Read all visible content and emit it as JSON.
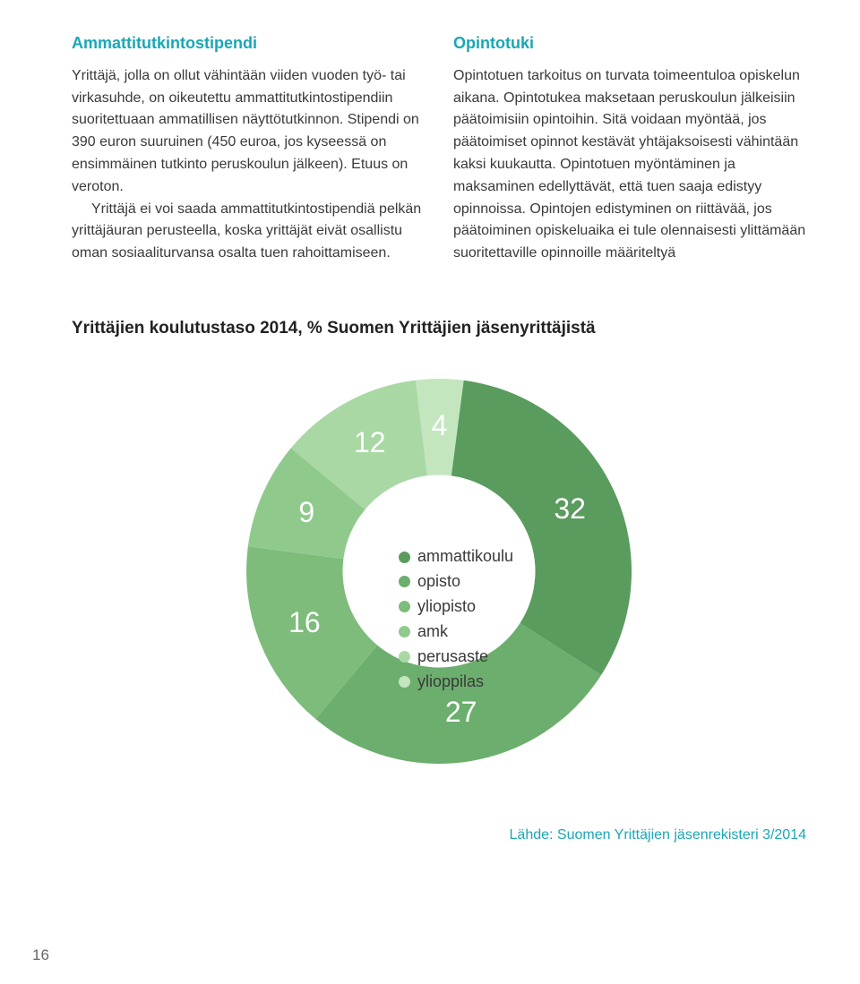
{
  "colors": {
    "accent": "#19a7b5",
    "body": "#555555",
    "chart_title": "#222222"
  },
  "left": {
    "heading": "Ammattitutkintostipendi",
    "p1": "Yrittäjä, jolla on ollut vähintään viiden vuoden työ- tai virkasuhde, on oikeutettu ammattitutkintostipendiin suoritettuaan ammatillisen näyttötutkinnon. Stipendi on 390 euron suuruinen (450 euroa, jos kyseessä on ensimmäinen tutkinto peruskoulun jälkeen). Etuus on veroton.",
    "p2": "Yrittäjä ei voi saada ammattitutkintostipendiä pelkän yrittäjäuran perusteella, koska yrittäjät eivät osallistu oman sosiaaliturvansa osalta tuen rahoittamiseen."
  },
  "right": {
    "heading": "Opintotuki",
    "p1": "Opintotuen tarkoitus on turvata toimeentuloa opiskelun aikana. Opintotukea maksetaan peruskoulun jälkeisiin päätoimisiin opintoihin. Sitä voidaan myöntää, jos päätoimiset opinnot kestävät yhtäjaksoisesti vähintään kaksi kuukautta. Opintotuen myöntäminen ja maksaminen edellyttävät, että tuen saaja edistyy opinnoissa. Opintojen edistyminen on riittävää, jos päätoiminen opiskeluaika ei tule olennaisesti ylittämään suoritettaville opinnoille määriteltyä"
  },
  "chart": {
    "title": "Yrittäjien koulutustaso 2014, % Suomen Yrittäjien jäsenyrittäjistä",
    "type": "donut",
    "background_color": "#ffffff",
    "inner_radius_ratio": 0.5,
    "segments": [
      {
        "label": "ammattikoulu",
        "value": 32,
        "color": "#5a9b5e"
      },
      {
        "label": "opisto",
        "value": 27,
        "color": "#6cae6d"
      },
      {
        "label": "yliopisto",
        "value": 16,
        "color": "#7dbc7b"
      },
      {
        "label": "amk",
        "value": 9,
        "color": "#8fca8c"
      },
      {
        "label": "perusaste",
        "value": 12,
        "color": "#a9d8a4"
      },
      {
        "label": "ylioppilas",
        "value": 4,
        "color": "#c4e6bf"
      }
    ],
    "label_fontsize": 32,
    "label_color": "#ffffff",
    "legend_fontsize": 18,
    "source": "Lähde: Suomen Yrittäjien jäsenrekisteri 3/2014"
  },
  "page_number": "16"
}
